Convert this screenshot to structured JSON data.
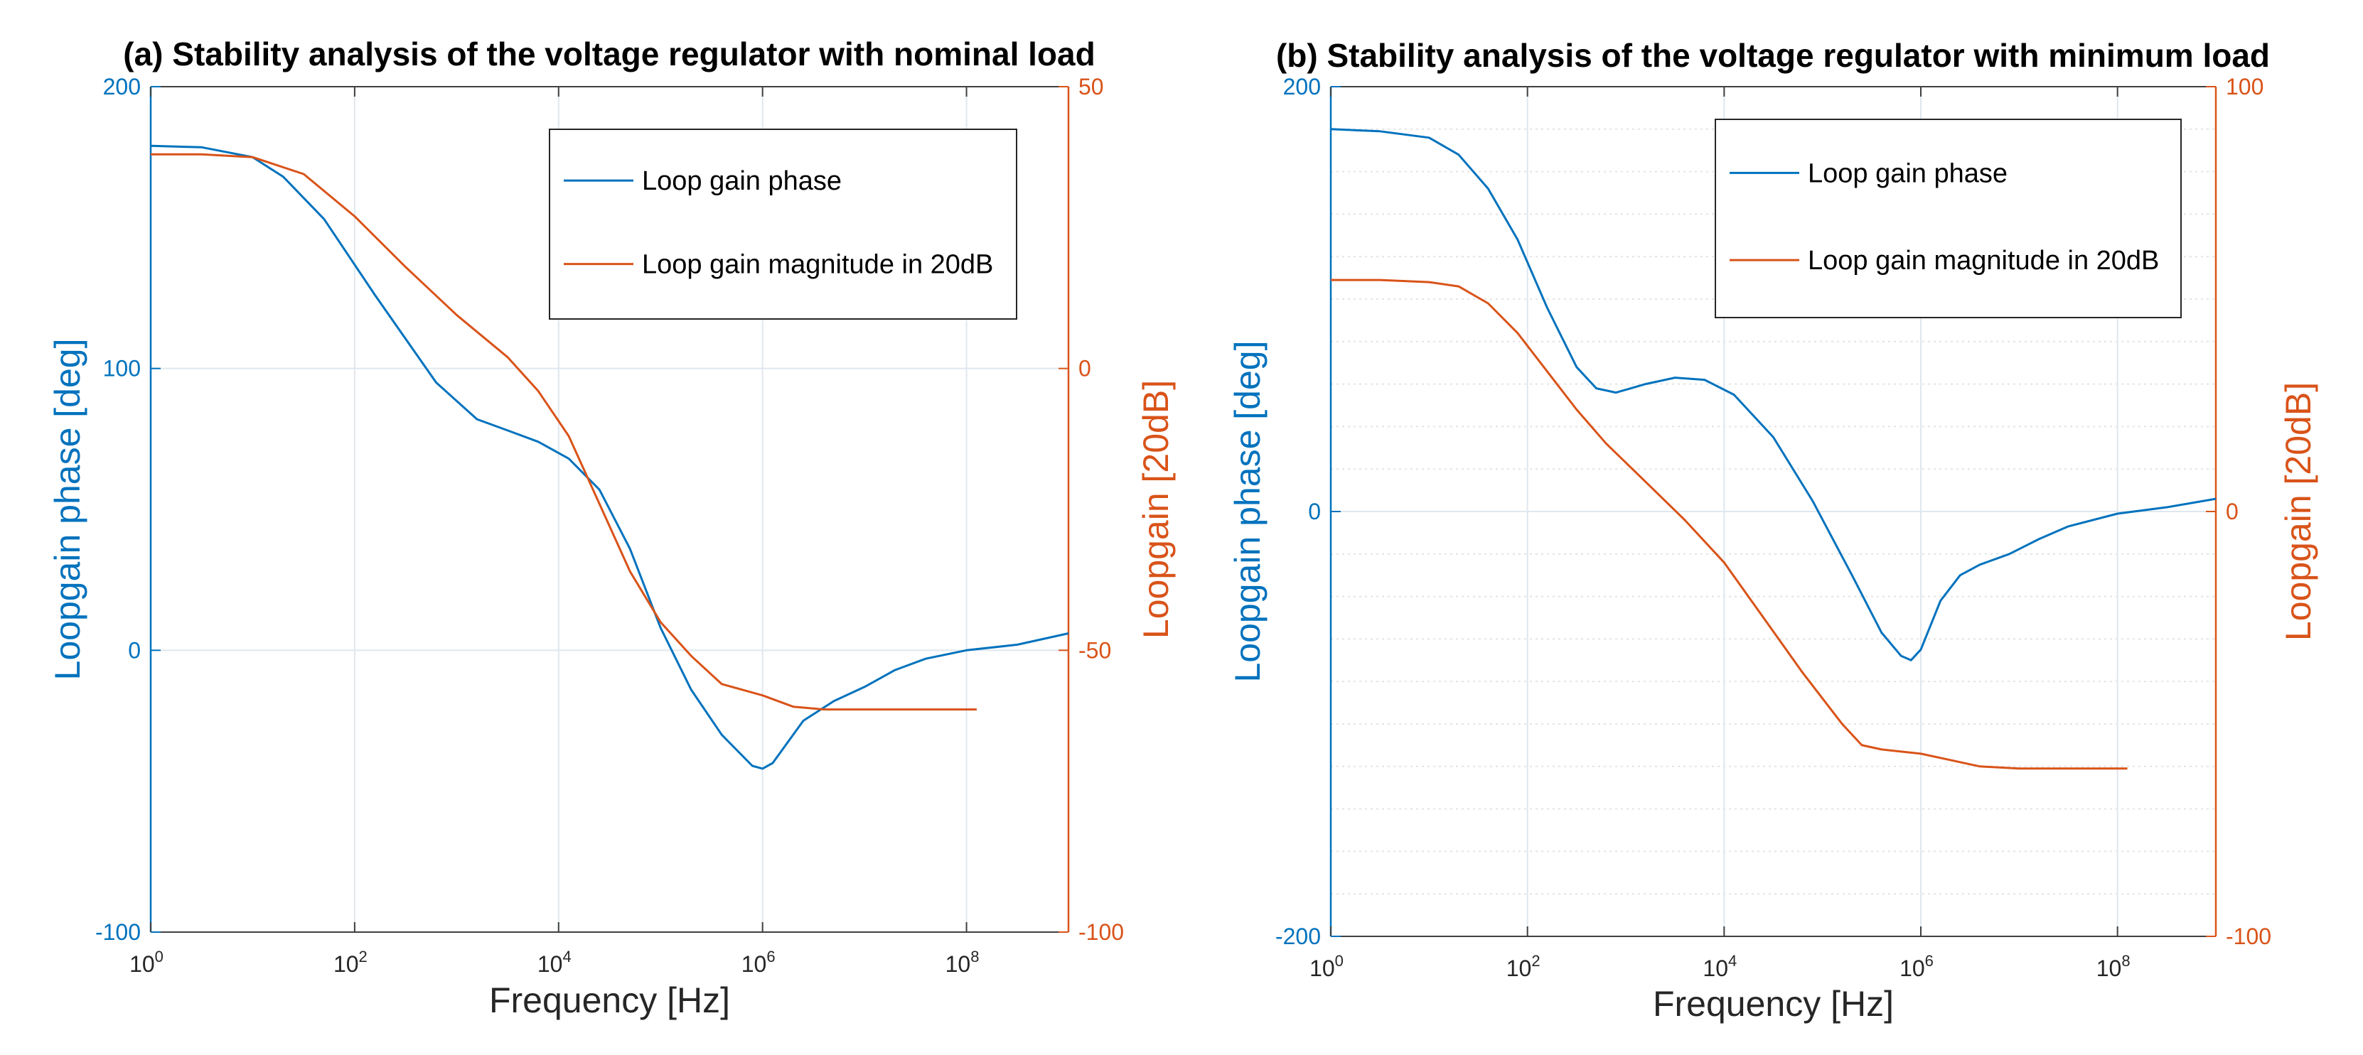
{
  "colors": {
    "phase": "#0072BD",
    "magnitude": "#D95319",
    "grid": "#DFE7EE",
    "axis": "#404040",
    "text": "#262626"
  },
  "chart_data": [
    {
      "type": "line",
      "title": "(a) Stability analysis of the voltage regulator with nominal load",
      "xlabel": "Frequency [Hz]",
      "ylabel_left": "Loopgain phase [deg]",
      "ylabel_right": "Loopgain [20dB]",
      "xscale": "log",
      "xlim": [
        1,
        1000000000
      ],
      "x_ticks": [
        {
          "base": "10",
          "exp": "0"
        },
        {
          "base": "10",
          "exp": "2"
        },
        {
          "base": "10",
          "exp": "4"
        },
        {
          "base": "10",
          "exp": "6"
        },
        {
          "base": "10",
          "exp": "8"
        }
      ],
      "ylim_left": [
        -100,
        200
      ],
      "yticks_left": [
        "200",
        "100",
        "0",
        "-100"
      ],
      "ylim_right": [
        -100,
        50
      ],
      "yticks_right": [
        "50",
        "0",
        "-50",
        "-100"
      ],
      "grid": "major",
      "legend": {
        "position": "top-right",
        "entries": [
          "Loop gain phase",
          "Loop gain magnitude in 20dB"
        ]
      },
      "series": [
        {
          "name": "Loop gain phase",
          "axis": "left",
          "points": [
            [
              0,
              179
            ],
            [
              0.5,
              178.5
            ],
            [
              1,
              175
            ],
            [
              1.3,
              168
            ],
            [
              1.7,
              153
            ],
            [
              2.2,
              126
            ],
            [
              2.8,
              95
            ],
            [
              3.2,
              82
            ],
            [
              3.5,
              78
            ],
            [
              3.8,
              74
            ],
            [
              4.1,
              68
            ],
            [
              4.4,
              57
            ],
            [
              4.7,
              36
            ],
            [
              5,
              8
            ],
            [
              5.3,
              -14
            ],
            [
              5.6,
              -30
            ],
            [
              5.9,
              -41
            ],
            [
              6,
              -42
            ],
            [
              6.1,
              -40
            ],
            [
              6.4,
              -25
            ],
            [
              6.7,
              -18
            ],
            [
              7,
              -13
            ],
            [
              7.3,
              -7
            ],
            [
              7.6,
              -3
            ],
            [
              8,
              0
            ],
            [
              8.5,
              2
            ],
            [
              9,
              6
            ]
          ]
        },
        {
          "name": "Loop gain magnitude in 20dB",
          "axis": "right",
          "points": [
            [
              0,
              38
            ],
            [
              0.5,
              38
            ],
            [
              1,
              37.5
            ],
            [
              1.5,
              34.5
            ],
            [
              2,
              27
            ],
            [
              2.5,
              18
            ],
            [
              3,
              9.5
            ],
            [
              3.5,
              2
            ],
            [
              3.8,
              -4
            ],
            [
              4.1,
              -12
            ],
            [
              4.4,
              -24
            ],
            [
              4.7,
              -36
            ],
            [
              5,
              -45
            ],
            [
              5.3,
              -51
            ],
            [
              5.6,
              -56
            ],
            [
              6,
              -58
            ],
            [
              6.3,
              -60
            ],
            [
              6.6,
              -60.5
            ],
            [
              7,
              -60.5
            ],
            [
              7.5,
              -60.5
            ],
            [
              8.1,
              -60.5
            ]
          ]
        }
      ]
    },
    {
      "type": "line",
      "title": "(b) Stability analysis of the voltage regulator with minimum load",
      "xlabel": "Frequency [Hz]",
      "ylabel_left": "Loopgain phase [deg]",
      "ylabel_right": "Loopgain [20dB]",
      "xscale": "log",
      "xlim": [
        1,
        1000000000
      ],
      "x_ticks": [
        {
          "base": "10",
          "exp": "0"
        },
        {
          "base": "10",
          "exp": "2"
        },
        {
          "base": "10",
          "exp": "4"
        },
        {
          "base": "10",
          "exp": "6"
        },
        {
          "base": "10",
          "exp": "8"
        }
      ],
      "ylim_left": [
        -200,
        200
      ],
      "yticks_left": [
        "200",
        "0",
        "-200"
      ],
      "ylim_right": [
        -100,
        100
      ],
      "yticks_right": [
        "100",
        "0",
        "-100"
      ],
      "grid": "major+minor",
      "legend": {
        "position": "top-right",
        "entries": [
          "Loop gain phase",
          "Loop gain magnitude in 20dB"
        ]
      },
      "series": [
        {
          "name": "Loop gain phase",
          "axis": "left",
          "points": [
            [
              0,
              180
            ],
            [
              0.5,
              179
            ],
            [
              1,
              176
            ],
            [
              1.3,
              168
            ],
            [
              1.6,
              152
            ],
            [
              1.9,
              128
            ],
            [
              2.2,
              96
            ],
            [
              2.5,
              68
            ],
            [
              2.7,
              58
            ],
            [
              2.9,
              56
            ],
            [
              3.2,
              60
            ],
            [
              3.5,
              63
            ],
            [
              3.8,
              62
            ],
            [
              4.1,
              55
            ],
            [
              4.5,
              35
            ],
            [
              4.9,
              5
            ],
            [
              5.3,
              -30
            ],
            [
              5.6,
              -57
            ],
            [
              5.8,
              -68
            ],
            [
              5.9,
              -70
            ],
            [
              6,
              -65
            ],
            [
              6.2,
              -42
            ],
            [
              6.4,
              -30
            ],
            [
              6.6,
              -25
            ],
            [
              6.9,
              -20
            ],
            [
              7.2,
              -13
            ],
            [
              7.5,
              -7
            ],
            [
              8,
              -1
            ],
            [
              8.5,
              2
            ],
            [
              9,
              6
            ]
          ]
        },
        {
          "name": "Loop gain magnitude in 20dB",
          "axis": "right",
          "points": [
            [
              0,
              54.5
            ],
            [
              0.5,
              54.5
            ],
            [
              1,
              54
            ],
            [
              1.3,
              53
            ],
            [
              1.6,
              49
            ],
            [
              1.9,
              42
            ],
            [
              2.2,
              33
            ],
            [
              2.5,
              24
            ],
            [
              2.8,
              16
            ],
            [
              3.2,
              7
            ],
            [
              3.6,
              -2
            ],
            [
              4,
              -12
            ],
            [
              4.4,
              -25
            ],
            [
              4.8,
              -38
            ],
            [
              5.2,
              -50
            ],
            [
              5.4,
              -55
            ],
            [
              5.6,
              -56
            ],
            [
              6,
              -57
            ],
            [
              6.3,
              -58.5
            ],
            [
              6.6,
              -60
            ],
            [
              7,
              -60.5
            ],
            [
              7.5,
              -60.5
            ],
            [
              8.1,
              -60.5
            ]
          ]
        }
      ]
    }
  ]
}
